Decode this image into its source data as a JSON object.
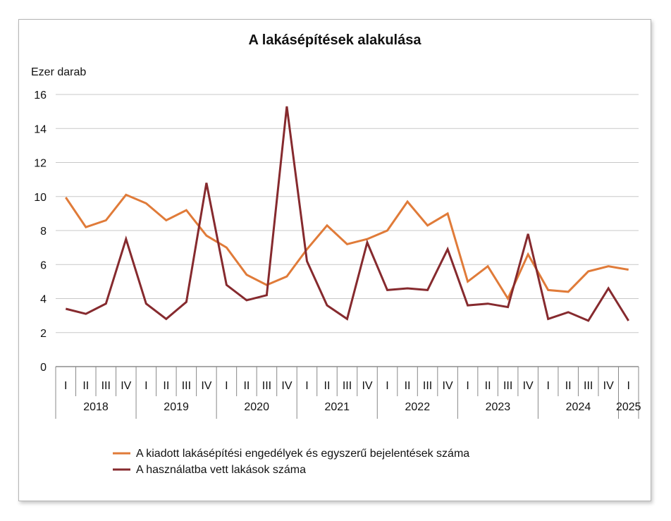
{
  "chart_data": {
    "type": "line",
    "title": "A lakásépítések alakulása",
    "ylabel": "Ezer darab",
    "ylim": [
      0,
      16
    ],
    "yticks": [
      0,
      2,
      4,
      6,
      8,
      10,
      12,
      14,
      16
    ],
    "grid": true,
    "legend_position": "bottom-left",
    "quarters": [
      "I",
      "II",
      "III",
      "IV",
      "I",
      "II",
      "III",
      "IV",
      "I",
      "II",
      "III",
      "IV",
      "I",
      "II",
      "III",
      "IV",
      "I",
      "II",
      "III",
      "IV",
      "I",
      "II",
      "III",
      "IV",
      "I",
      "II",
      "III",
      "IV",
      "I"
    ],
    "years": [
      {
        "label": "2018",
        "quarters": 4
      },
      {
        "label": "2019",
        "quarters": 4
      },
      {
        "label": "2020",
        "quarters": 4
      },
      {
        "label": "2021",
        "quarters": 4
      },
      {
        "label": "2022",
        "quarters": 4
      },
      {
        "label": "2023",
        "quarters": 4
      },
      {
        "label": "2024",
        "quarters": 4
      },
      {
        "label": "2025",
        "quarters": 1
      }
    ],
    "series": [
      {
        "name": "A kiadott lakásépítési engedélyek és egyszerű bejelentések száma",
        "color": "#e07b39",
        "values": [
          9.95,
          8.2,
          8.6,
          10.1,
          9.6,
          8.6,
          9.2,
          7.7,
          7.0,
          5.4,
          4.8,
          5.3,
          6.9,
          8.3,
          7.2,
          7.5,
          8.0,
          9.7,
          8.3,
          9.0,
          5.0,
          5.9,
          4.0,
          6.6,
          4.5,
          4.4,
          5.6,
          5.9,
          5.7
        ]
      },
      {
        "name": "A használatba vett lakások száma",
        "color": "#862a2e",
        "values": [
          3.4,
          3.1,
          3.7,
          7.5,
          3.7,
          2.8,
          3.8,
          10.8,
          4.8,
          3.9,
          4.2,
          15.3,
          6.2,
          3.6,
          2.8,
          7.3,
          4.5,
          4.6,
          4.5,
          6.9,
          3.6,
          3.7,
          3.5,
          7.8,
          2.8,
          3.2,
          2.7,
          4.6,
          2.7
        ]
      }
    ]
  }
}
